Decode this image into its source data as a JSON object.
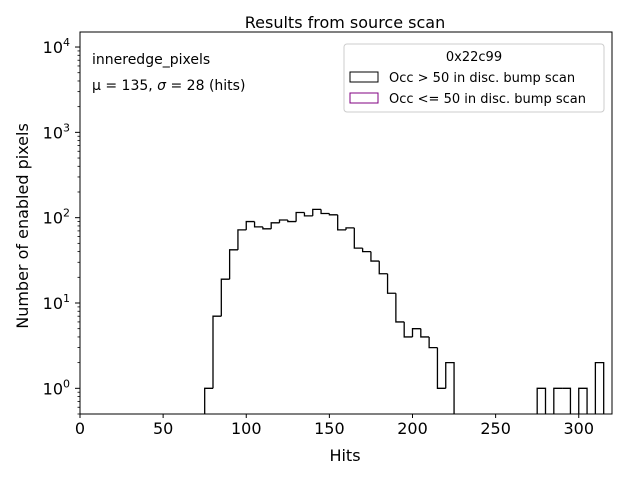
{
  "chart_data": {
    "type": "histogram",
    "title": "Results from source scan",
    "xlabel": "Hits",
    "ylabel": "Number of enabled pixels",
    "xlim": [
      0,
      320
    ],
    "ylim": [
      0.5,
      15000
    ],
    "yscale": "log",
    "grid": false,
    "xticks": [
      0,
      50,
      100,
      150,
      200,
      250,
      300
    ],
    "yticks": [
      1,
      10,
      100,
      1000,
      10000
    ],
    "ytick_labels": [
      {
        "base": "10",
        "exp": "0"
      },
      {
        "base": "10",
        "exp": "1"
      },
      {
        "base": "10",
        "exp": "2"
      },
      {
        "base": "10",
        "exp": "3"
      },
      {
        "base": "10",
        "exp": "4"
      }
    ],
    "annotations": {
      "name": "inneredge_pixels",
      "stats_prefix": "μ = 135, ",
      "stats_sigma_symbol": "σ",
      "stats_suffix": " = 28 (hits)"
    },
    "legend": {
      "location": "top-right",
      "title": "0x22c99",
      "entries": [
        {
          "label": "Occ > 50 in disc. bump scan",
          "color": "#000000"
        },
        {
          "label": "Occ <= 50 in disc. bump scan",
          "color": "#800080"
        }
      ]
    },
    "bin_width": 5,
    "series": [
      {
        "name": "Occ > 50 in disc. bump scan",
        "color": "#000000",
        "bins": [
          {
            "x": 75,
            "y": 1
          },
          {
            "x": 80,
            "y": 7
          },
          {
            "x": 85,
            "y": 19
          },
          {
            "x": 90,
            "y": 42
          },
          {
            "x": 95,
            "y": 72
          },
          {
            "x": 100,
            "y": 90
          },
          {
            "x": 105,
            "y": 78
          },
          {
            "x": 110,
            "y": 74
          },
          {
            "x": 115,
            "y": 87
          },
          {
            "x": 120,
            "y": 94
          },
          {
            "x": 125,
            "y": 90
          },
          {
            "x": 130,
            "y": 115
          },
          {
            "x": 135,
            "y": 105
          },
          {
            "x": 140,
            "y": 125
          },
          {
            "x": 145,
            "y": 112
          },
          {
            "x": 150,
            "y": 108
          },
          {
            "x": 155,
            "y": 72
          },
          {
            "x": 160,
            "y": 76
          },
          {
            "x": 165,
            "y": 44
          },
          {
            "x": 170,
            "y": 40
          },
          {
            "x": 175,
            "y": 31
          },
          {
            "x": 180,
            "y": 22
          },
          {
            "x": 185,
            "y": 13
          },
          {
            "x": 190,
            "y": 6
          },
          {
            "x": 195,
            "y": 4
          },
          {
            "x": 200,
            "y": 5
          },
          {
            "x": 205,
            "y": 4
          },
          {
            "x": 210,
            "y": 3
          },
          {
            "x": 215,
            "y": 1
          },
          {
            "x": 220,
            "y": 2
          },
          {
            "x": 275,
            "y": 1
          },
          {
            "x": 285,
            "y": 1
          },
          {
            "x": 290,
            "y": 1
          },
          {
            "x": 300,
            "y": 1
          },
          {
            "x": 310,
            "y": 2
          }
        ]
      },
      {
        "name": "Occ <= 50 in disc. bump scan",
        "color": "#800080",
        "bins": []
      }
    ]
  }
}
